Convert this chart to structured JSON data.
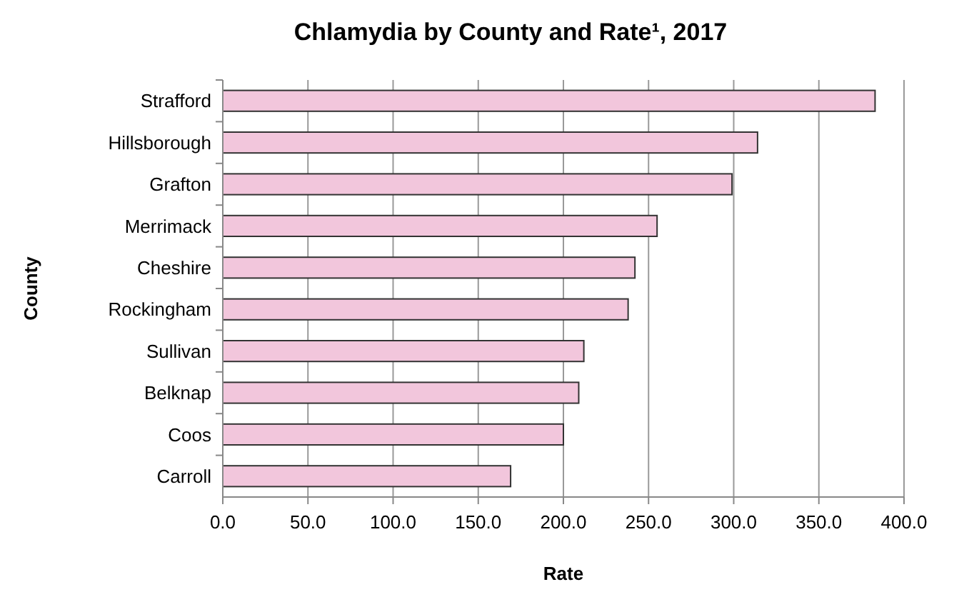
{
  "chart_data": {
    "type": "bar",
    "orientation": "horizontal",
    "title": "Chlamydia by County and Rate¹, 2017",
    "xlabel": "Rate",
    "ylabel": "County",
    "categories": [
      "Strafford",
      "Hillsborough",
      "Grafton",
      "Merrimack",
      "Cheshire",
      "Rockingham",
      "Sullivan",
      "Belknap",
      "Coos",
      "Carroll"
    ],
    "values": [
      383,
      314,
      299,
      255,
      242,
      238,
      212,
      209,
      200,
      169
    ],
    "color": "#f2c6dc",
    "xlim": [
      0,
      400
    ],
    "xticks": [
      {
        "value": 0,
        "label": "0.0"
      },
      {
        "value": 50,
        "label": "50.0"
      },
      {
        "value": 100,
        "label": "100.0"
      },
      {
        "value": 150,
        "label": "150.0"
      },
      {
        "value": 200,
        "label": "200.0"
      },
      {
        "value": 250,
        "label": "250.0"
      },
      {
        "value": 300,
        "label": "300.0"
      },
      {
        "value": 350,
        "label": "350.0"
      },
      {
        "value": 400,
        "label": "400.0"
      }
    ],
    "grid": "x"
  }
}
